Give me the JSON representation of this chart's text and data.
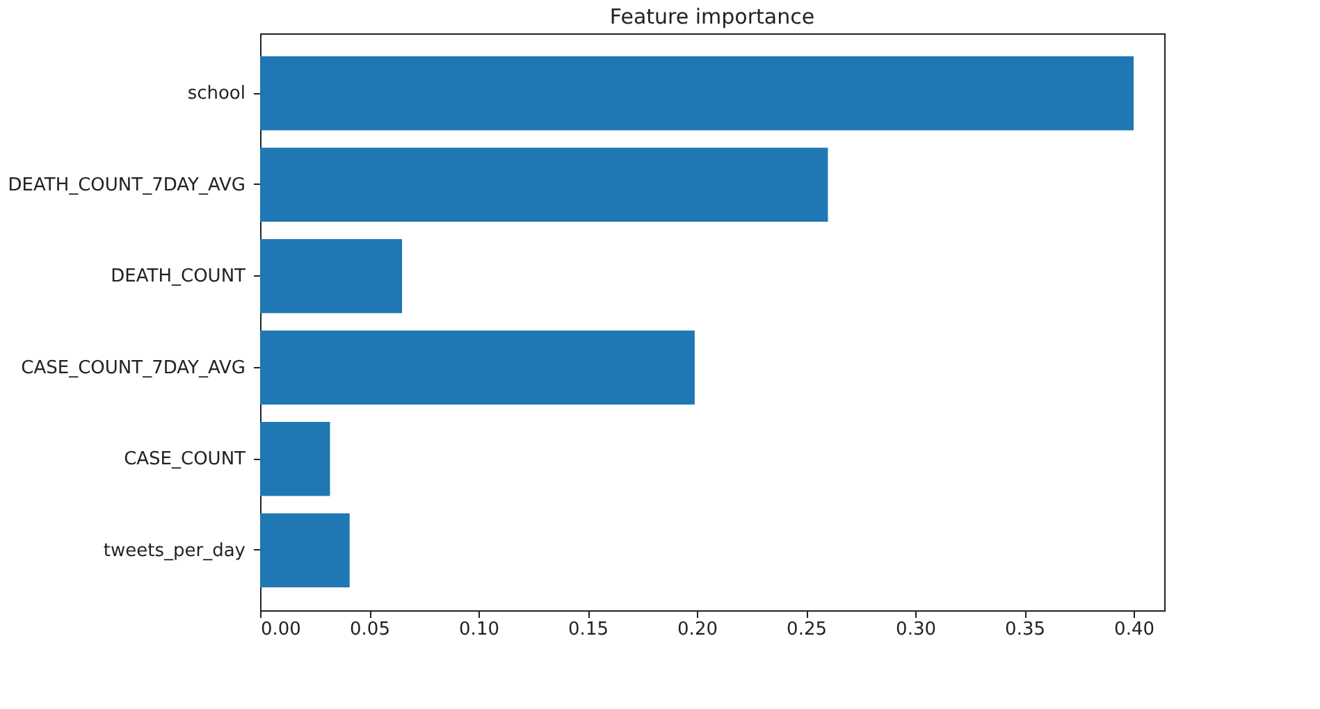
{
  "chart_data": {
    "type": "bar",
    "orientation": "horizontal",
    "title": "Feature importance",
    "categories": [
      "school",
      "DEATH_COUNT_7DAY_AVG",
      "DEATH_COUNT",
      "CASE_COUNT_7DAY_AVG",
      "CASE_COUNT",
      "tweets_per_day"
    ],
    "values": [
      0.4,
      0.26,
      0.065,
      0.199,
      0.032,
      0.041
    ],
    "color": "#1f77b4",
    "xlim": [
      0,
      0.414
    ],
    "xticks": [
      {
        "value": 0,
        "label": "0.00"
      },
      0.05,
      {
        "value": 0.1,
        "label": "0.10"
      },
      0.15,
      {
        "value": 0.2,
        "label": "0.20"
      },
      0.25,
      {
        "value": 0.3,
        "label": "0.30"
      },
      0.35,
      {
        "value": 0.4,
        "label": "0.40"
      }
    ],
    "grid": false
  }
}
